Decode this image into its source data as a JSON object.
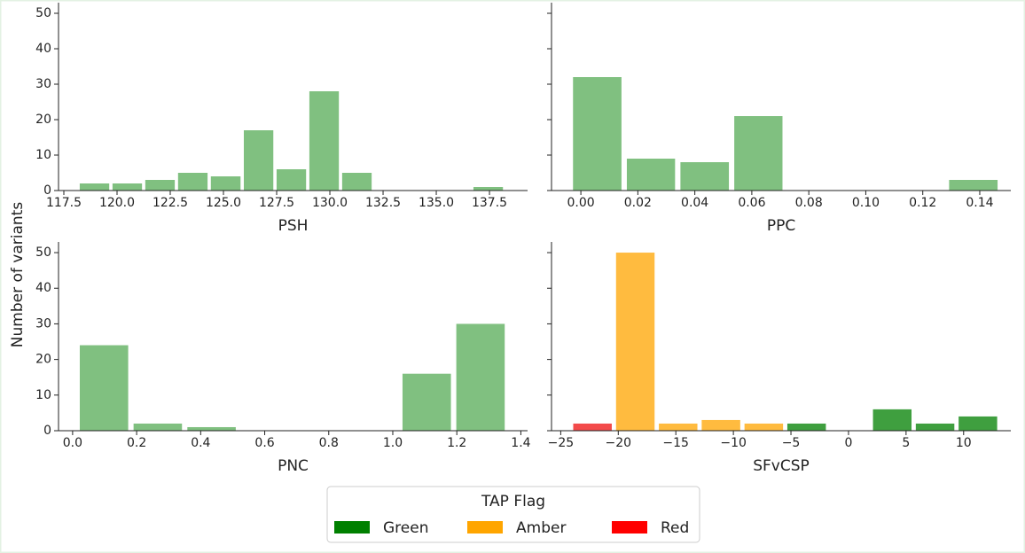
{
  "ylabel": "Number of variants",
  "legend": {
    "title": "TAP Flag",
    "entries": [
      {
        "name": "Green",
        "color": "#008000"
      },
      {
        "name": "Amber",
        "color": "#ffa500"
      },
      {
        "name": "Red",
        "color": "#ff0000"
      }
    ]
  },
  "chart_data": [
    {
      "type": "histogram",
      "xlabel": "PSH",
      "color": "#80c080",
      "bins": [
        118.17,
        119.71,
        121.25,
        122.79,
        124.33,
        125.88,
        127.42,
        128.96,
        130.5,
        132.04,
        133.58,
        135.13,
        136.67,
        138.21
      ],
      "values": [
        2,
        2,
        3,
        5,
        4,
        17,
        6,
        28,
        5,
        0,
        0,
        0,
        1
      ],
      "xlim": [
        117.25,
        139.29
      ],
      "ylim": [
        0,
        53
      ],
      "xticks": [
        117.5,
        {
          "value": 120,
          "label": "120.0"
        },
        122.5,
        {
          "value": 125,
          "label": "125.0"
        },
        127.5,
        {
          "value": 130,
          "label": "130.0"
        },
        132.5,
        {
          "value": 135,
          "label": "135.0"
        },
        137.5
      ],
      "yticks": [
        0,
        10,
        20,
        30,
        40,
        50
      ],
      "ytick_labels": true
    },
    {
      "type": "histogram",
      "xlabel": "PPC",
      "color": "#80c080",
      "bins": [
        -0.0037,
        0.0152,
        0.034,
        0.0529,
        0.0717,
        0.0906,
        0.1094,
        0.1283,
        0.1472
      ],
      "values": [
        32,
        9,
        8,
        21,
        0,
        0,
        0,
        3
      ],
      "xlim": [
        -0.0103,
        0.1509
      ],
      "ylim": [
        0,
        53
      ],
      "xticks": [
        {
          "value": 0,
          "label": "0.00"
        },
        0.02,
        0.04,
        0.06,
        0.08,
        {
          "value": 0.1,
          "label": "0.10"
        },
        0.12,
        0.14
      ],
      "yticks": [
        0,
        10,
        20,
        30,
        40,
        50
      ],
      "ytick_labels": false
    },
    {
      "type": "histogram",
      "xlabel": "PNC",
      "color": "#80c080",
      "bins": [
        0.014,
        0.182,
        0.35,
        0.518,
        0.686,
        0.854,
        1.022,
        1.19,
        1.358
      ],
      "values": [
        24,
        2,
        1,
        0,
        0,
        0,
        16,
        30
      ],
      "xlim": [
        -0.044,
        1.421
      ],
      "ylim": [
        0,
        53
      ],
      "xticks": [
        {
          "value": 0,
          "label": "0.0"
        },
        0.2,
        0.4,
        0.6,
        0.8,
        {
          "value": 1,
          "label": "1.0"
        },
        1.2,
        1.4
      ],
      "yticks": [
        0,
        10,
        20,
        30,
        40,
        50
      ],
      "ytick_labels": true
    },
    {
      "type": "histogram",
      "xlabel": "SFvCSP",
      "bins": [
        -24.1,
        -20.38,
        -16.66,
        -12.94,
        -9.22,
        -5.5,
        -1.78,
        1.94,
        5.66,
        9.38,
        13.1
      ],
      "values": [
        2,
        50,
        2,
        3,
        2,
        2,
        0,
        6,
        2,
        4
      ],
      "colors": [
        "#f34a4a",
        "#ffbb3f",
        "#ffbb3f",
        "#ffbb3f",
        "#ffbb3f",
        "#3f9f3f",
        "#3f9f3f",
        "#3f9f3f",
        "#3f9f3f",
        "#3f9f3f"
      ],
      "xlim": [
        -25.8,
        14.1
      ],
      "ylim": [
        0,
        53
      ],
      "xticks": [
        {
          "value": -25,
          "label": "−25"
        },
        {
          "value": -20,
          "label": "−20"
        },
        {
          "value": -15,
          "label": "−15"
        },
        {
          "value": -10,
          "label": "−10"
        },
        {
          "value": -5,
          "label": "−5"
        },
        0,
        5,
        10
      ],
      "yticks": [
        0,
        10,
        20,
        30,
        40,
        50
      ],
      "ytick_labels": false
    }
  ]
}
